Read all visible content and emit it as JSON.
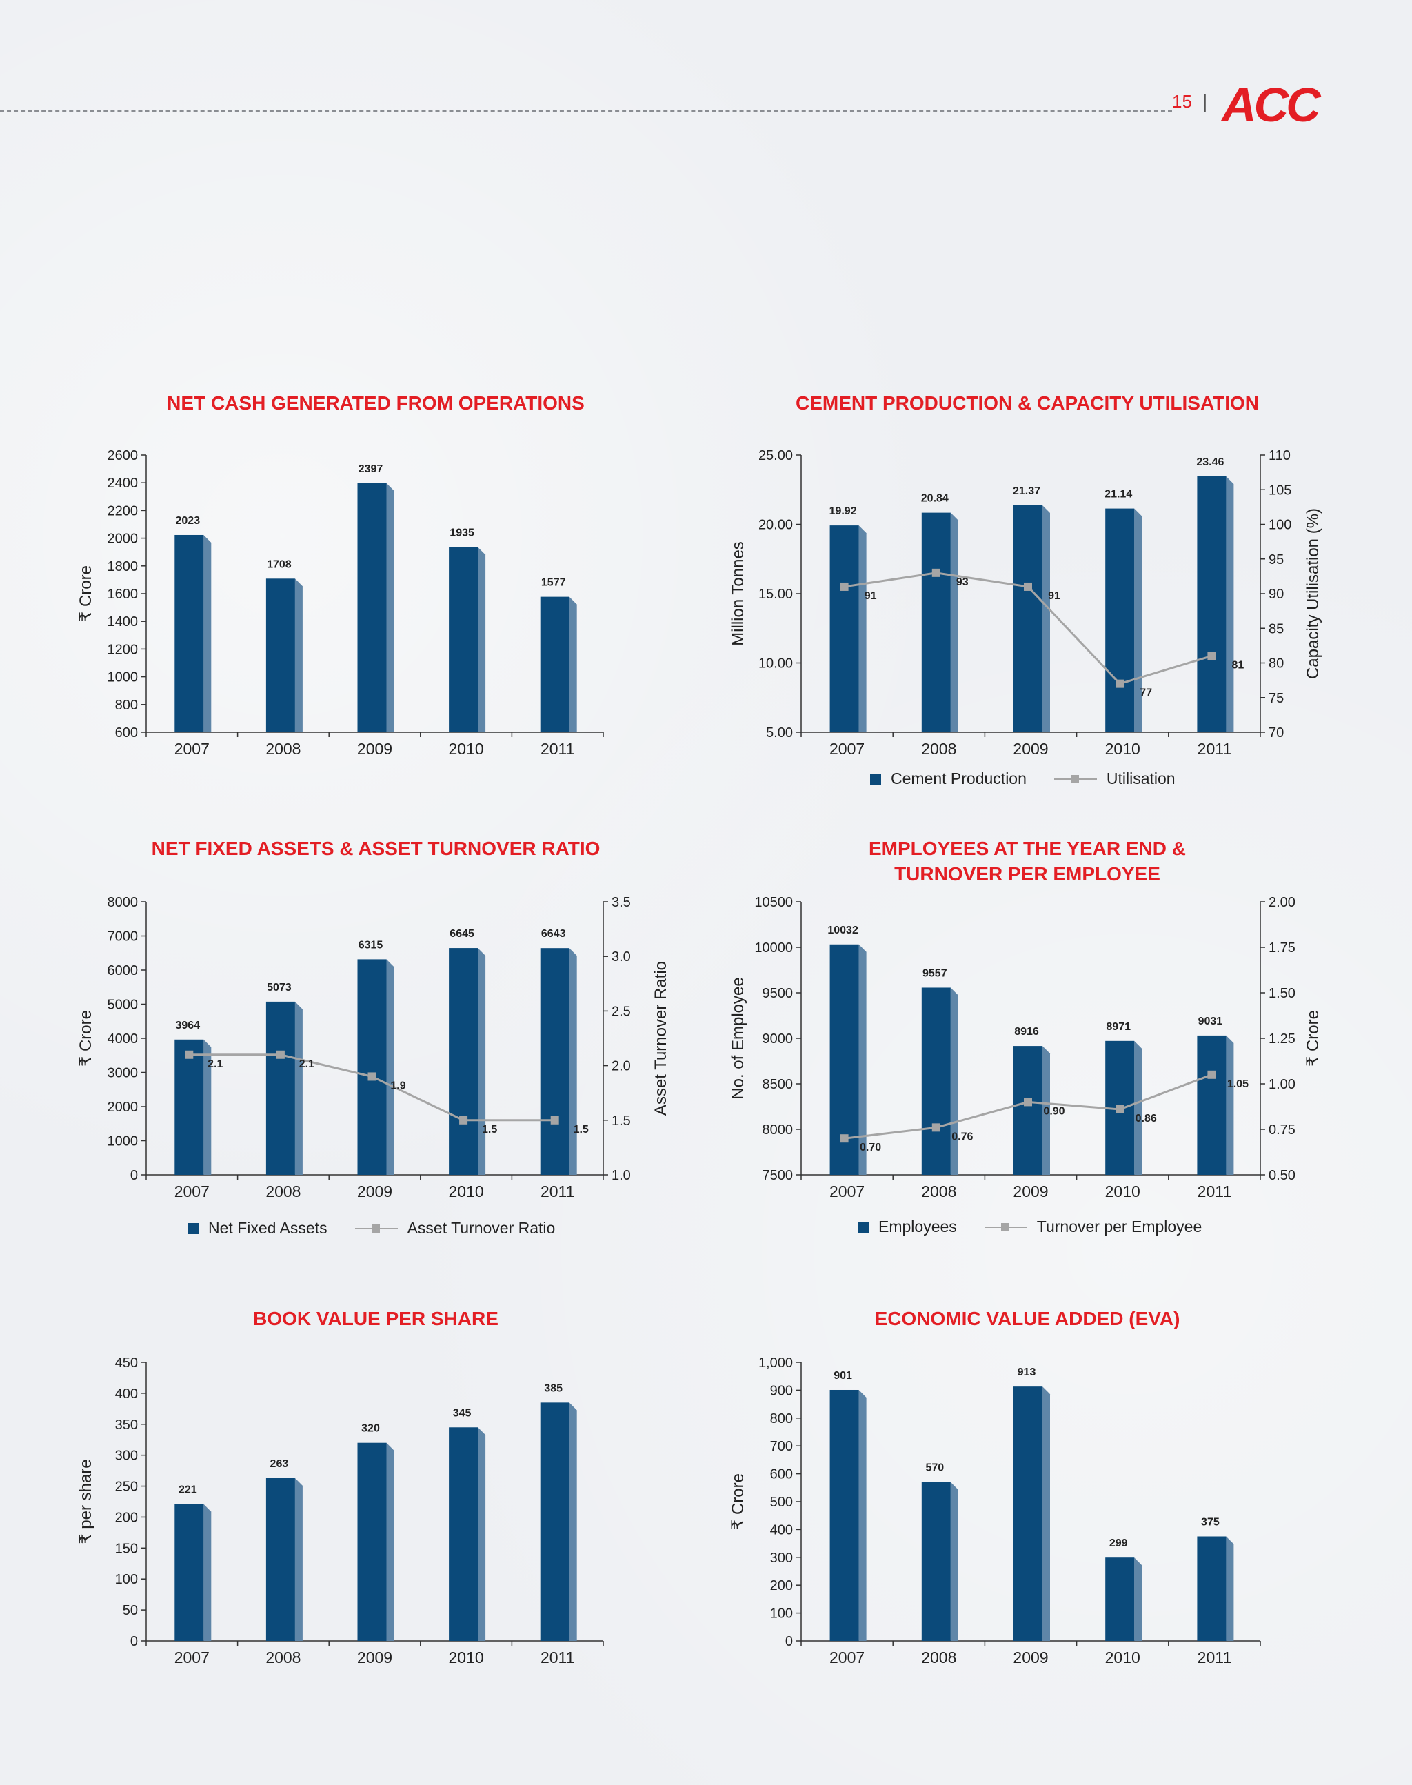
{
  "header": {
    "page_number": "15",
    "separator": "|",
    "logo_text": "ACC"
  },
  "colors": {
    "bar": "#0b4a7a",
    "bar_side": "#5f86a8",
    "line": "#a5a5a5",
    "title": "#e31e24"
  },
  "chart_data": [
    {
      "id": "net-cash",
      "type": "bar",
      "title": "NET CASH GENERATED FROM OPERATIONS",
      "ylabel": "₹ Crore",
      "categories": [
        "2007",
        "2008",
        "2009",
        "2010",
        "2011"
      ],
      "values": [
        2023,
        1708,
        2397,
        1935,
        1577
      ],
      "value_labels": [
        "2023",
        "1708",
        "2397",
        "1935",
        "1577"
      ],
      "ylim": [
        600,
        2600
      ],
      "yticks": [
        "600",
        "800",
        "1000",
        "1200",
        "1400",
        "1600",
        "1800",
        "2000",
        "2200",
        "2400",
        "2600"
      ]
    },
    {
      "id": "cement-production",
      "type": "bar",
      "title": "CEMENT PRODUCTION & CAPACITY UTILISATION",
      "ylabel": "Million Tonnes",
      "y2label": "Capacity Utilisation (%)",
      "categories": [
        "2007",
        "2008",
        "2009",
        "2010",
        "2011"
      ],
      "values": [
        19.92,
        20.84,
        21.37,
        21.14,
        23.46
      ],
      "value_labels": [
        "19.92",
        "20.84",
        "21.37",
        "21.14",
        "23.46"
      ],
      "ylim": [
        5,
        25
      ],
      "yticks": [
        "5.00",
        "10.00",
        "15.00",
        "20.00",
        "25.00"
      ],
      "line": {
        "name": "Utilisation",
        "values": [
          91,
          93,
          91,
          77,
          81
        ],
        "labels": [
          "91",
          "93",
          "91",
          "77",
          "81"
        ]
      },
      "y2lim": [
        70,
        110
      ],
      "y2ticks": [
        "70",
        "75",
        "80",
        "85",
        "90",
        "95",
        "100",
        "105",
        "110"
      ],
      "legend": [
        "Cement Production",
        "Utilisation"
      ]
    },
    {
      "id": "net-fixed-assets",
      "type": "bar",
      "title": "NET FIXED ASSETS & ASSET TURNOVER RATIO",
      "ylabel": "₹ Crore",
      "y2label": "Asset Turnover Ratio",
      "categories": [
        "2007",
        "2008",
        "2009",
        "2010",
        "2011"
      ],
      "values": [
        3964,
        5073,
        6315,
        6645,
        6643
      ],
      "value_labels": [
        "3964",
        "5073",
        "6315",
        "6645",
        "6643"
      ],
      "ylim": [
        0,
        8000
      ],
      "yticks": [
        "0",
        "1000",
        "2000",
        "3000",
        "4000",
        "5000",
        "6000",
        "7000",
        "8000"
      ],
      "line": {
        "name": "Asset Turnover Ratio",
        "values": [
          2.1,
          2.1,
          1.9,
          1.5,
          1.5
        ],
        "labels": [
          "2.1",
          "2.1",
          "1.9",
          "1.5",
          "1.5"
        ]
      },
      "y2lim": [
        1.0,
        3.5
      ],
      "y2ticks": [
        "1.0",
        "1.5",
        "2.0",
        "2.5",
        "3.0",
        "3.5"
      ],
      "legend": [
        "Net Fixed Assets",
        "Asset Turnover Ratio"
      ]
    },
    {
      "id": "employees",
      "type": "bar",
      "title_lines": [
        "EMPLOYEES AT THE YEAR END &",
        "TURNOVER PER EMPLOYEE"
      ],
      "ylabel": "No. of Employee",
      "y2label": "₹ Crore",
      "categories": [
        "2007",
        "2008",
        "2009",
        "2010",
        "2011"
      ],
      "values": [
        10032,
        9557,
        8916,
        8971,
        9031
      ],
      "value_labels": [
        "10032",
        "9557",
        "8916",
        "8971",
        "9031"
      ],
      "ylim": [
        7500,
        10500
      ],
      "yticks": [
        "7500",
        "8000",
        "8500",
        "9000",
        "9500",
        "10000",
        "10500"
      ],
      "line": {
        "name": "Turnover per Employee",
        "values": [
          0.7,
          0.76,
          0.9,
          0.86,
          1.05
        ],
        "labels": [
          "0.70",
          "0.76",
          "0.90",
          "0.86",
          "1.05"
        ]
      },
      "y2lim": [
        0.5,
        2.0
      ],
      "y2ticks": [
        "0.50",
        "0.75",
        "1.00",
        "1.25",
        "1.50",
        "1.75",
        "2.00"
      ],
      "legend": [
        "Employees",
        "Turnover per Employee"
      ]
    },
    {
      "id": "book-value",
      "type": "bar",
      "title": "BOOK VALUE PER SHARE",
      "ylabel": "₹ per share",
      "categories": [
        "2007",
        "2008",
        "2009",
        "2010",
        "2011"
      ],
      "values": [
        221,
        263,
        320,
        345,
        385
      ],
      "value_labels": [
        "221",
        "263",
        "320",
        "345",
        "385"
      ],
      "ylim": [
        0,
        450
      ],
      "yticks": [
        "0",
        "50",
        "100",
        "150",
        "200",
        "250",
        "300",
        "350",
        "400",
        "450"
      ]
    },
    {
      "id": "eva",
      "type": "bar",
      "title": "ECONOMIC VALUE ADDED (EVA)",
      "ylabel": "₹ Crore",
      "categories": [
        "2007",
        "2008",
        "2009",
        "2010",
        "2011"
      ],
      "values": [
        901,
        570,
        913,
        299,
        375
      ],
      "value_labels": [
        "901",
        "570",
        "913",
        "299",
        "375"
      ],
      "ylim": [
        0,
        1000
      ],
      "yticks": [
        "0",
        "100",
        "200",
        "300",
        "400",
        "500",
        "600",
        "700",
        "800",
        "900",
        "1,000"
      ]
    }
  ]
}
